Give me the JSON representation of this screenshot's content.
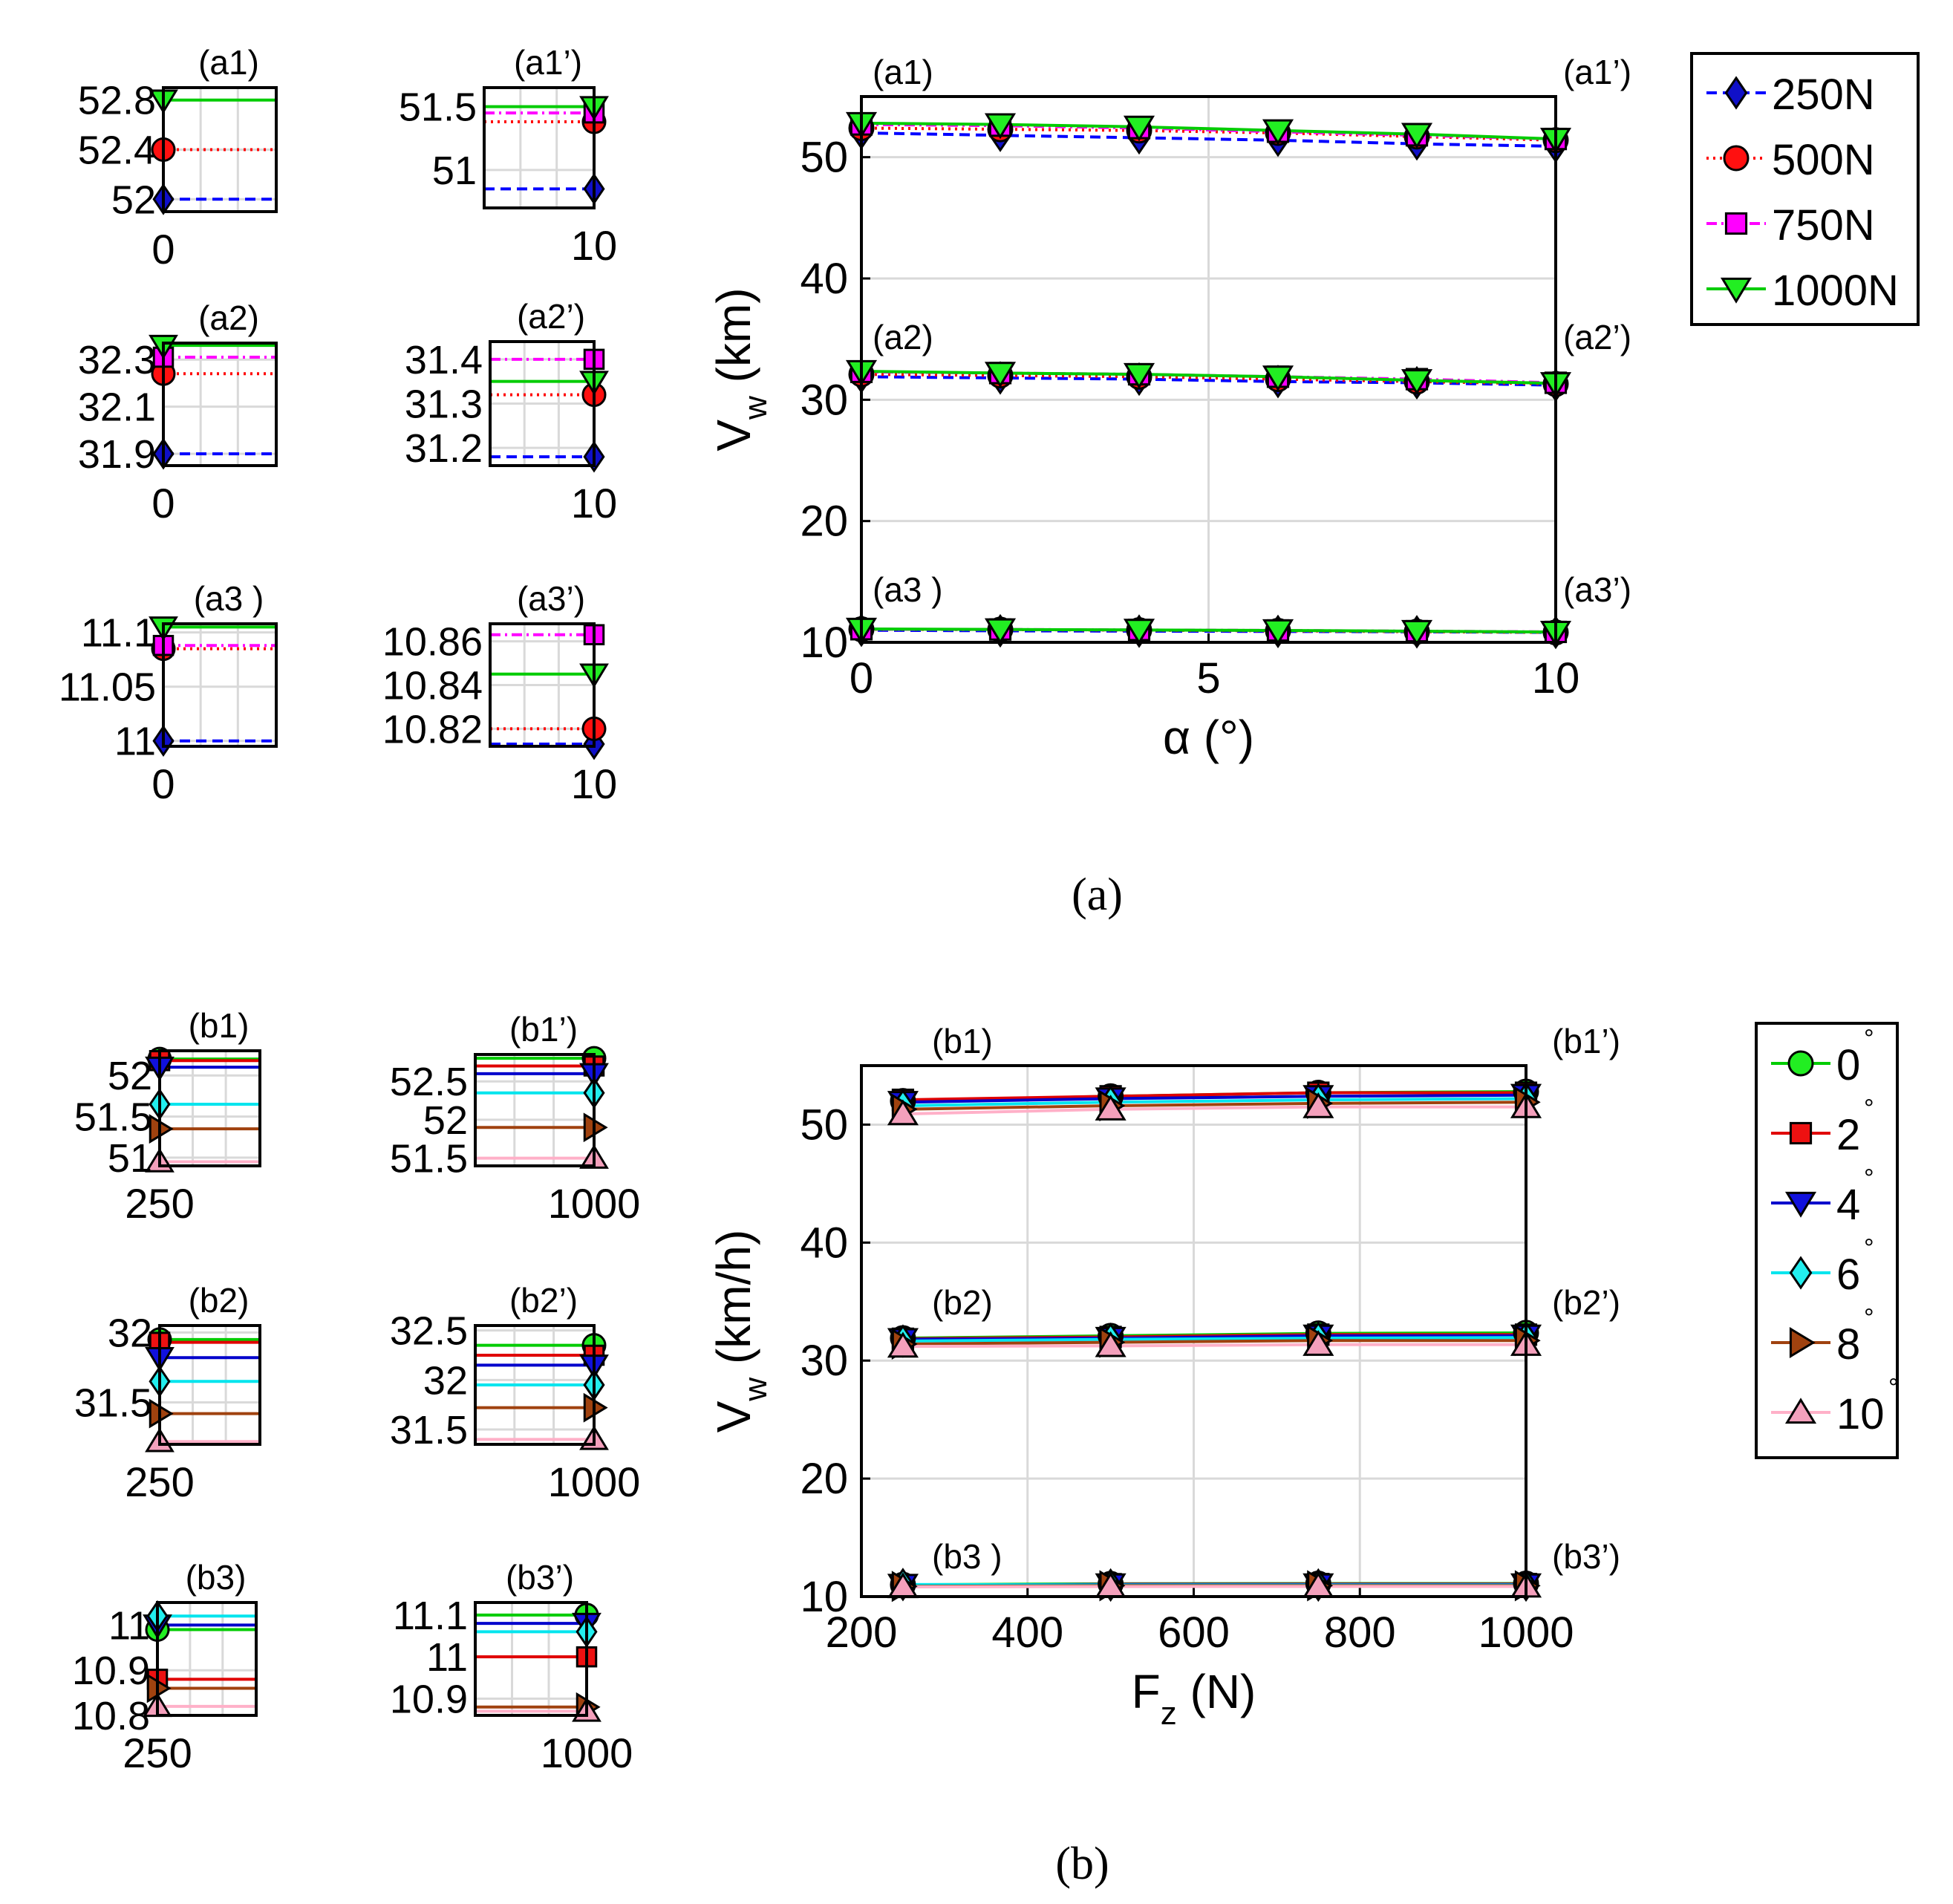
{
  "colors": {
    "F250": "#0000ff",
    "F250_marker": "#1010c8",
    "F500": "#ff0000",
    "F500_marker": "#ff1010",
    "F750": "#ff00ff",
    "F750_marker": "#ff00ff",
    "F1000": "#00cc00",
    "F1000_marker": "#22ee22",
    "a0": "#00cc00",
    "a0_marker": "#22ee22",
    "a2": "#e00000",
    "a2_marker": "#ee1111",
    "a4": "#0000cc",
    "a4_marker": "#1111dd",
    "a6": "#00e5ee",
    "a6_marker": "#22eeee",
    "a8": "#a0420f",
    "a8_marker": "#a0420f",
    "a10": "#ffb0c8",
    "a10_marker": "#f4a0bc",
    "grid": "#d9d9d9"
  },
  "chart_data": [
    {
      "id": "a-main",
      "type": "line",
      "caption": "(a)",
      "xlabel": "α (°)",
      "ylabel": "Vw (km)",
      "xlim": [
        0,
        10
      ],
      "ylim": [
        10,
        55
      ],
      "xticks": [
        0,
        5,
        10
      ],
      "yticks": [
        10,
        20,
        30,
        40,
        50
      ],
      "grid": true,
      "legend": "outside-right",
      "x": [
        0,
        2,
        4,
        6,
        8,
        10
      ],
      "series": [
        {
          "name": "250N",
          "style": "dash",
          "marker": "diamond",
          "color_key": "F250",
          "groups": [
            [
              52.0,
              51.8,
              51.6,
              51.4,
              51.1,
              50.9
            ],
            [
              31.9,
              31.8,
              31.7,
              31.5,
              31.4,
              31.2
            ],
            [
              11.0,
              10.95,
              10.92,
              10.9,
              10.87,
              10.82
            ]
          ]
        },
        {
          "name": "500N",
          "style": "dot",
          "marker": "circle",
          "color_key": "F500",
          "groups": [
            [
              52.4,
              52.3,
              52.2,
              52.0,
              51.7,
              51.4
            ],
            [
              32.1,
              32.0,
              31.9,
              31.7,
              31.5,
              31.3
            ],
            [
              11.08,
              11.05,
              11.0,
              10.95,
              10.88,
              10.82
            ]
          ]
        },
        {
          "name": "750N",
          "style": "dashdot",
          "marker": "square",
          "color_key": "F750",
          "groups": [
            [
              52.7,
              52.6,
              52.4,
              52.1,
              51.8,
              51.5
            ],
            [
              32.3,
              32.2,
              32.1,
              31.9,
              31.7,
              31.4
            ],
            [
              11.08,
              11.06,
              11.02,
              10.98,
              10.92,
              10.86
            ]
          ]
        },
        {
          "name": "1000N",
          "style": "solid",
          "marker": "triangle-down",
          "color_key": "F1000",
          "groups": [
            [
              52.8,
              52.7,
              52.5,
              52.2,
              51.9,
              51.5
            ],
            [
              32.35,
              32.2,
              32.1,
              31.9,
              31.6,
              31.35
            ],
            [
              11.1,
              11.06,
              11.02,
              10.98,
              10.92,
              10.85
            ]
          ]
        }
      ],
      "annotations_left": [
        "(a1)",
        "(a2)",
        "(a3 )"
      ],
      "annotations_right": [
        "(a1’)",
        "(a2’)",
        "(a3’)"
      ]
    },
    {
      "id": "a-insets",
      "type": "line",
      "insets": [
        {
          "title": "(a1)",
          "x_value": 0,
          "xtick": "0",
          "ylim": [
            51.9,
            52.9
          ],
          "yticks": [
            "52",
            "52.4",
            "52.8"
          ],
          "ytick_values": [
            52.0,
            52.4,
            52.8
          ],
          "values": [
            52.0,
            52.4,
            null,
            52.8
          ]
        },
        {
          "title": "(a1’)",
          "x_value": 10,
          "xtick": "10",
          "ylim": [
            50.7,
            51.65
          ],
          "yticks": [
            "51",
            "51.5"
          ],
          "ytick_values": [
            51.0,
            51.5
          ],
          "values": [
            50.85,
            51.38,
            51.45,
            51.5
          ]
        },
        {
          "title": "(a2)",
          "x_value": 0,
          "xtick": "0",
          "ylim": [
            31.85,
            32.37
          ],
          "yticks": [
            "31.9",
            "32.1",
            "32.3"
          ],
          "ytick_values": [
            31.9,
            32.1,
            32.3
          ],
          "values": [
            31.9,
            32.24,
            32.31,
            32.36
          ]
        },
        {
          "title": "(a2’)",
          "x_value": 10,
          "xtick": "10",
          "ylim": [
            31.16,
            31.44
          ],
          "yticks": [
            "31.2",
            "31.3",
            "31.4"
          ],
          "ytick_values": [
            31.2,
            31.3,
            31.4
          ],
          "values": [
            31.18,
            31.32,
            31.4,
            31.35
          ]
        },
        {
          "title": "(a3 )",
          "x_value": 0,
          "xtick": "0",
          "ylim": [
            10.995,
            11.108
          ],
          "yticks": [
            "11",
            "11.05",
            "11.1"
          ],
          "ytick_values": [
            11.0,
            11.05,
            11.1
          ],
          "values": [
            11.0,
            11.085,
            11.088,
            11.105
          ]
        },
        {
          "title": "(a3’)",
          "x_value": 10,
          "xtick": "10",
          "ylim": [
            10.812,
            10.868
          ],
          "yticks": [
            "10.82",
            "10.84",
            "10.86"
          ],
          "ytick_values": [
            10.82,
            10.84,
            10.86
          ],
          "values": [
            10.813,
            10.82,
            10.863,
            10.845
          ]
        }
      ]
    },
    {
      "id": "b-main",
      "type": "line",
      "caption": "(b)",
      "xlabel": "Fz (N)",
      "ylabel": "Vw (km/h)",
      "xlim": [
        200,
        1000
      ],
      "ylim": [
        10,
        55
      ],
      "xticks": [
        200,
        400,
        600,
        800,
        1000
      ],
      "yticks": [
        10,
        20,
        30,
        40,
        50
      ],
      "grid": true,
      "legend": "outside-right",
      "x": [
        250,
        500,
        750,
        1000
      ],
      "series": [
        {
          "name": "0",
          "style": "solid",
          "marker": "circle",
          "color_key": "a0",
          "groups": [
            [
              52.0,
              52.4,
              52.7,
              52.8
            ],
            [
              31.9,
              32.1,
              32.3,
              32.35
            ],
            [
              11.0,
              11.08,
              11.1,
              11.1
            ]
          ]
        },
        {
          "name": "2",
          "style": "solid",
          "marker": "square",
          "color_key": "a2",
          "groups": [
            [
              52.1,
              52.4,
              52.7,
              52.7
            ],
            [
              31.85,
              32.0,
              32.2,
              32.2
            ],
            [
              10.88,
              11.05,
              11.06,
              11.06
            ]
          ]
        },
        {
          "name": "4",
          "style": "solid",
          "marker": "triangle-down",
          "color_key": "a4",
          "groups": [
            [
              51.9,
              52.2,
              52.4,
              52.5
            ],
            [
              31.8,
              31.9,
              32.1,
              32.1
            ],
            [
              10.98,
              11.02,
              11.02,
              11.02
            ]
          ]
        },
        {
          "name": "6",
          "style": "solid",
          "marker": "diamond",
          "color_key": "a6",
          "groups": [
            [
              51.6,
              51.9,
              52.1,
              52.2
            ],
            [
              31.65,
              31.8,
              31.9,
              31.95
            ],
            [
              11.02,
              10.98,
              10.98,
              10.98
            ]
          ]
        },
        {
          "name": "8",
          "style": "solid",
          "marker": "triangle-right",
          "color_key": "a8",
          "groups": [
            [
              51.3,
              51.6,
              51.8,
              51.9
            ],
            [
              31.4,
              31.55,
              31.7,
              31.7
            ],
            [
              10.86,
              10.92,
              10.92,
              10.92
            ]
          ]
        },
        {
          "name": "10",
          "style": "solid",
          "marker": "triangle-up",
          "color_key": "a10",
          "groups": [
            [
              50.9,
              51.3,
              51.5,
              51.5
            ],
            [
              31.2,
              31.25,
              31.35,
              31.35
            ],
            [
              10.82,
              10.85,
              10.86,
              10.86
            ]
          ]
        }
      ],
      "degree_symbol": "°",
      "annotations_left": [
        "(b1)",
        "(b2)",
        "(b3 )"
      ],
      "annotations_right": [
        "(b1’)",
        "(b2’)",
        "(b3’)"
      ]
    },
    {
      "id": "b-insets",
      "type": "line",
      "insets": [
        {
          "title": "(b1)",
          "x_value": 250,
          "xtick": "250",
          "ylim": [
            50.9,
            52.3
          ],
          "yticks": [
            "51",
            "51.5",
            "52"
          ],
          "ytick_values": [
            51.0,
            51.5,
            52.0
          ],
          "values": [
            52.2,
            52.18,
            52.1,
            51.65,
            51.35,
            50.95
          ]
        },
        {
          "title": "(b1’)",
          "x_value": 1000,
          "xtick": "1000",
          "ylim": [
            51.4,
            52.85
          ],
          "yticks": [
            "51.5",
            "52",
            "52.5"
          ],
          "ytick_values": [
            51.5,
            52.0,
            52.5
          ],
          "values": [
            52.8,
            52.7,
            52.6,
            52.35,
            51.9,
            51.5
          ]
        },
        {
          "title": "(b2)",
          "x_value": 250,
          "xtick": "250",
          "ylim": [
            31.2,
            32.05
          ],
          "yticks": [
            "31.5",
            "32"
          ],
          "ytick_values": [
            31.5,
            32.0
          ],
          "values": [
            31.95,
            31.93,
            31.82,
            31.65,
            31.42,
            31.22
          ]
        },
        {
          "title": "(b2’)",
          "x_value": 1000,
          "xtick": "1000",
          "ylim": [
            31.35,
            32.55
          ],
          "yticks": [
            "31.5",
            "32",
            "32.5"
          ],
          "ytick_values": [
            31.5,
            32.0,
            32.5
          ],
          "values": [
            32.35,
            32.25,
            32.15,
            31.95,
            31.72,
            31.4
          ]
        },
        {
          "title": "(b3)",
          "x_value": 250,
          "xtick": "250",
          "ylim": [
            10.8,
            11.05
          ],
          "yticks": [
            "10.8",
            "10.9",
            "11"
          ],
          "ytick_values": [
            10.8,
            10.9,
            11.0
          ],
          "values": [
            10.99,
            10.88,
            11.0,
            11.02,
            10.86,
            10.82
          ]
        },
        {
          "title": "(b3’)",
          "x_value": 1000,
          "xtick": "1000",
          "ylim": [
            10.86,
            11.13
          ],
          "yticks": [
            "10.9",
            "11",
            "11.1"
          ],
          "ytick_values": [
            10.9,
            11.0,
            11.1
          ],
          "values": [
            11.1,
            11.0,
            11.08,
            11.06,
            10.88,
            10.87
          ]
        }
      ]
    }
  ]
}
